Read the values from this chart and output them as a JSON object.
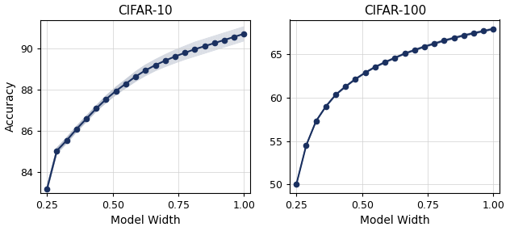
{
  "title1": "CIFAR-10",
  "title2": "CIFAR-100",
  "xlabel": "Model Width",
  "ylabel": "Accuracy",
  "line_color": "#1a3060",
  "ci_line_color": "#b0b8c8",
  "marker": "o",
  "marker_size": 4.5,
  "line_width": 1.5,
  "cifar10": {
    "x": [
      0.25,
      0.2875,
      0.325,
      0.3625,
      0.4,
      0.4375,
      0.475,
      0.5125,
      0.55,
      0.5875,
      0.625,
      0.6625,
      0.7,
      0.7375,
      0.775,
      0.8125,
      0.85,
      0.8875,
      0.925,
      0.9625,
      1.0
    ],
    "y": [
      83.2,
      85.05,
      85.55,
      86.1,
      86.6,
      87.1,
      87.55,
      87.95,
      88.3,
      88.65,
      88.95,
      89.2,
      89.42,
      89.62,
      89.8,
      89.97,
      90.12,
      90.27,
      90.42,
      90.57,
      90.72
    ],
    "y_std": [
      0.15,
      0.15,
      0.15,
      0.15,
      0.15,
      0.15,
      0.18,
      0.2,
      0.22,
      0.25,
      0.27,
      0.28,
      0.3,
      0.32,
      0.33,
      0.35,
      0.35,
      0.35,
      0.35,
      0.35,
      0.35
    ],
    "ylim": [
      83.0,
      91.4
    ],
    "yticks": [
      84,
      86,
      88,
      90
    ],
    "xlim": [
      0.225,
      1.025
    ],
    "xticks": [
      0.25,
      0.5,
      0.75,
      1.0
    ]
  },
  "cifar100": {
    "x": [
      0.25,
      0.2875,
      0.325,
      0.3625,
      0.4,
      0.4375,
      0.475,
      0.5125,
      0.55,
      0.5875,
      0.625,
      0.6625,
      0.7,
      0.7375,
      0.775,
      0.8125,
      0.85,
      0.8875,
      0.925,
      0.9625,
      1.0
    ],
    "y": [
      50.0,
      54.5,
      57.3,
      59.0,
      60.35,
      61.3,
      62.15,
      62.9,
      63.55,
      64.1,
      64.6,
      65.1,
      65.5,
      65.9,
      66.25,
      66.6,
      66.9,
      67.2,
      67.45,
      67.7,
      67.95
    ],
    "y_std": [
      0.08,
      0.08,
      0.1,
      0.1,
      0.1,
      0.1,
      0.1,
      0.1,
      0.1,
      0.1,
      0.1,
      0.1,
      0.12,
      0.12,
      0.12,
      0.12,
      0.12,
      0.12,
      0.12,
      0.12,
      0.12
    ],
    "ylim": [
      49.0,
      69.0
    ],
    "yticks": [
      50,
      55,
      60,
      65
    ],
    "xlim": [
      0.225,
      1.025
    ],
    "xticks": [
      0.25,
      0.5,
      0.75,
      1.0
    ]
  },
  "n_ci_lines": 20
}
